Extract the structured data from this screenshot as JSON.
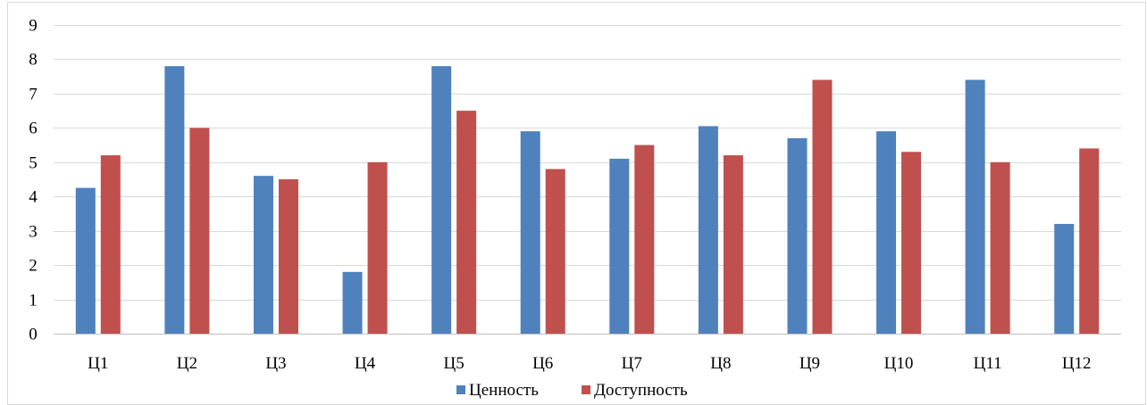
{
  "chart_data": {
    "type": "bar",
    "categories": [
      "Ц1",
      "Ц2",
      "Ц3",
      "Ц4",
      "Ц5",
      "Ц6",
      "Ц7",
      "Ц8",
      "Ц9",
      "Ц10",
      "Ц11",
      "Ц12"
    ],
    "series": [
      {
        "name": "Ценность",
        "color": "#4f81bd",
        "values": [
          4.25,
          7.8,
          4.6,
          1.8,
          7.8,
          5.9,
          5.1,
          6.05,
          5.7,
          5.9,
          7.4,
          3.2
        ]
      },
      {
        "name": "Доступность",
        "color": "#c0504d",
        "values": [
          5.2,
          6.0,
          4.5,
          5.0,
          6.5,
          4.8,
          5.5,
          5.2,
          7.4,
          5.3,
          5.0,
          5.4
        ]
      }
    ],
    "ylim": [
      0,
      9
    ],
    "yticks": [
      "0",
      "1",
      "2",
      "3",
      "4",
      "5",
      "6",
      "7",
      "8",
      "9"
    ],
    "grid": true,
    "legend": "bottom-center",
    "title": "",
    "xlabel": "",
    "ylabel": ""
  }
}
